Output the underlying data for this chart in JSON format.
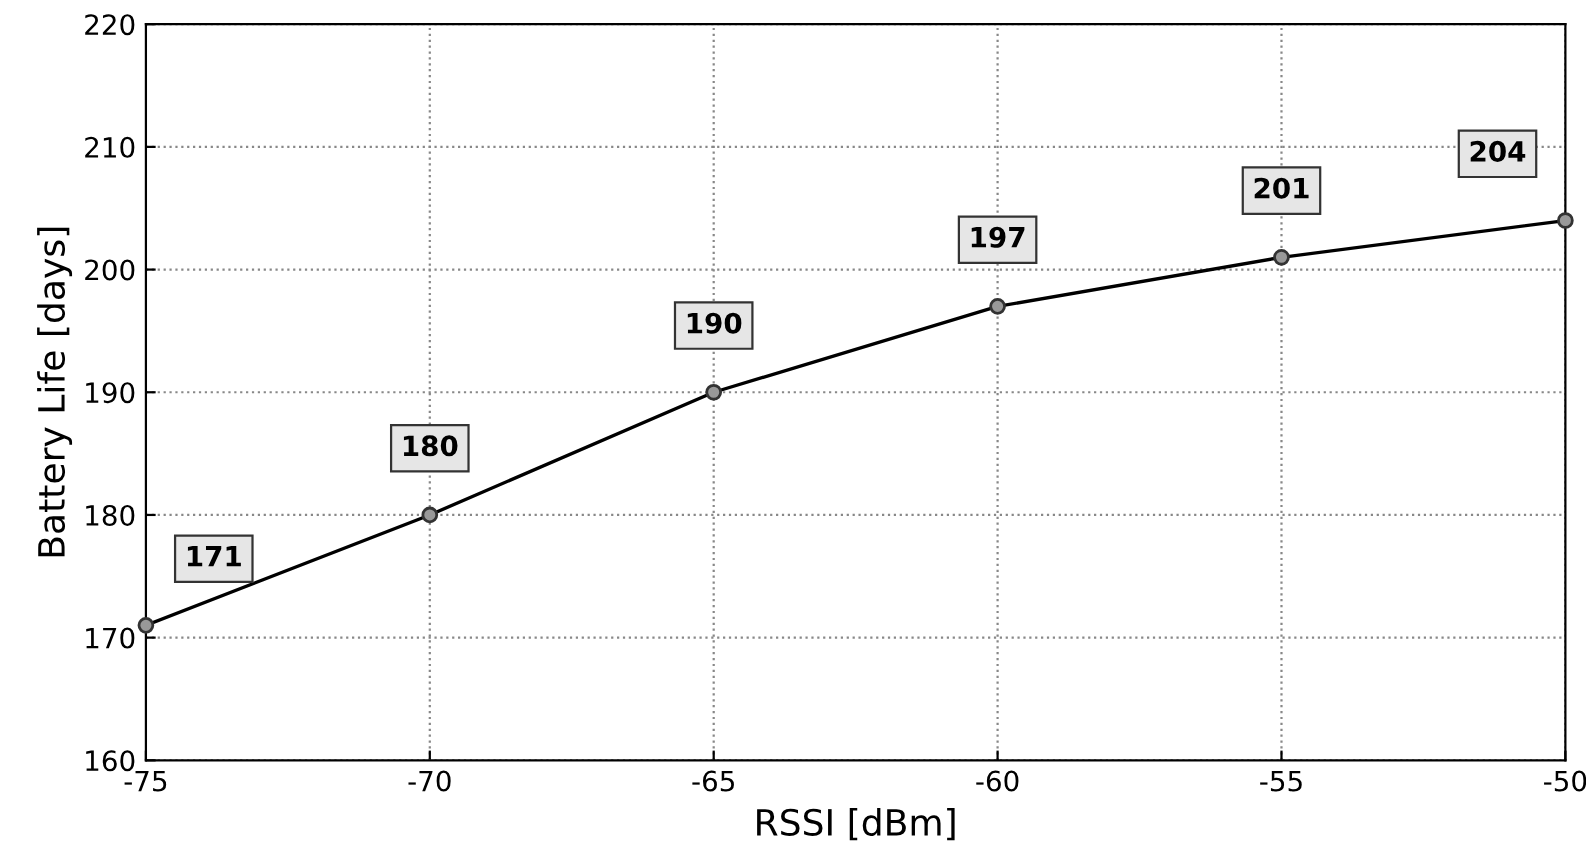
{
  "chart_data": {
    "type": "line",
    "xlabel": "RSSI [dBm]",
    "ylabel": "Battery Life [days]",
    "x": [
      -75,
      -70,
      -65,
      -60,
      -55,
      -50
    ],
    "series": [
      {
        "color": "#000000",
        "values": [
          171,
          180,
          190,
          197,
          201,
          204
        ]
      }
    ],
    "xlim": [
      -75,
      -50
    ],
    "xticks": [
      -75,
      -70,
      -65,
      -60,
      -55,
      -50
    ],
    "ylim": [
      160,
      220
    ],
    "yticks": [
      160,
      170,
      180,
      190,
      200,
      210,
      220
    ],
    "grid": true,
    "marker": "circle",
    "line_style": "solid",
    "data_labels": true
  }
}
